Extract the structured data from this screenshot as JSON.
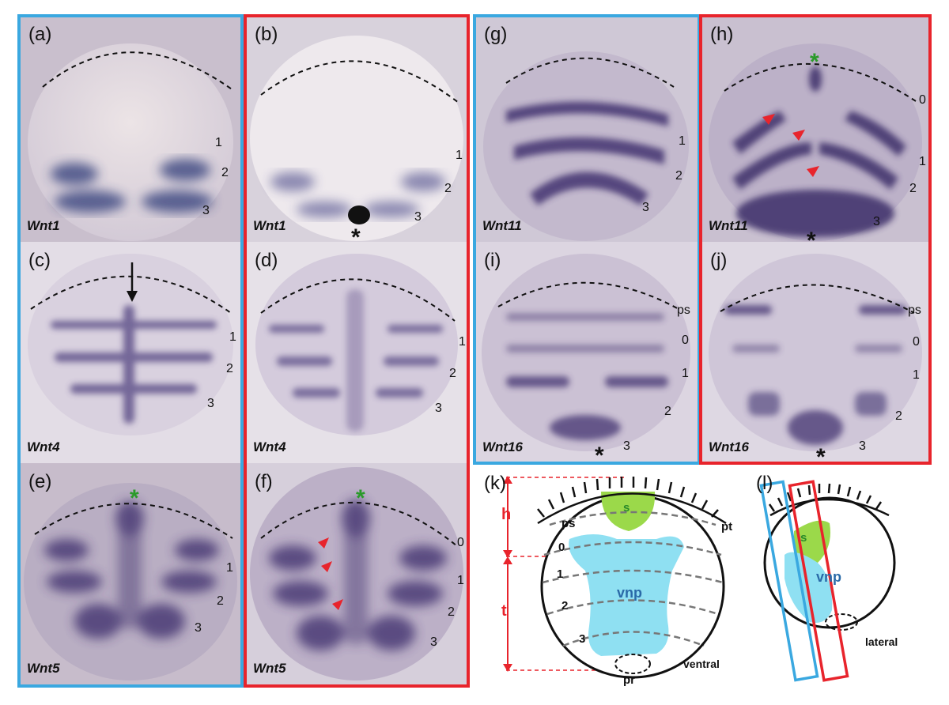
{
  "panels": [
    {
      "id": "a",
      "label": "(a)",
      "gene": "Wnt1",
      "numbers": [
        "1",
        "2",
        "3"
      ]
    },
    {
      "id": "b",
      "label": "(b)",
      "gene": "Wnt1",
      "numbers": [
        "1",
        "2",
        "3"
      ],
      "asterisk": "*"
    },
    {
      "id": "c",
      "label": "(c)",
      "gene": "Wnt4",
      "numbers": [
        "1",
        "2",
        "3"
      ]
    },
    {
      "id": "d",
      "label": "(d)",
      "gene": "Wnt4",
      "numbers": [
        "1",
        "2",
        "3"
      ]
    },
    {
      "id": "e",
      "label": "(e)",
      "gene": "Wnt5",
      "numbers": [
        "1",
        "2",
        "3"
      ],
      "green_asterisk": "*"
    },
    {
      "id": "f",
      "label": "(f)",
      "gene": "Wnt5",
      "numbers": [
        "0",
        "1",
        "2",
        "3"
      ],
      "green_asterisk": "*"
    },
    {
      "id": "g",
      "label": "(g)",
      "gene": "Wnt11",
      "numbers": [
        "1",
        "2",
        "3"
      ]
    },
    {
      "id": "h",
      "label": "(h)",
      "gene": "Wnt11",
      "numbers": [
        "0",
        "1",
        "2",
        "3"
      ],
      "asterisk": "*",
      "green_asterisk": "*"
    },
    {
      "id": "i",
      "label": "(i)",
      "gene": "Wnt16",
      "numbers": [
        "ps",
        "0",
        "1",
        "2",
        "3"
      ],
      "asterisk": "*"
    },
    {
      "id": "j",
      "label": "(j)",
      "gene": "Wnt16",
      "numbers": [
        "ps",
        "0",
        "1",
        "2",
        "3"
      ],
      "asterisk": "*"
    }
  ],
  "diagram_k": {
    "label": "(k)",
    "h": "h",
    "t": "t",
    "ps": "ps",
    "pt": "pt",
    "s": "s",
    "vnp": "vnp",
    "seg0": "0",
    "seg1": "1",
    "seg2": "2",
    "seg3": "3",
    "pr": "pr",
    "view": "ventral"
  },
  "diagram_l": {
    "label": "(l)",
    "s": "s",
    "vnp": "vnp",
    "view": "lateral"
  },
  "colors": {
    "blue_frame": "#3aa8e0",
    "red_frame": "#e8242c",
    "stain": "#4a3a7a",
    "green_asterisk": "#2a9a2a",
    "red_arrowhead": "#e8242c",
    "s_region": "#9bd94a",
    "vnp_region": "#8fe0f2"
  }
}
